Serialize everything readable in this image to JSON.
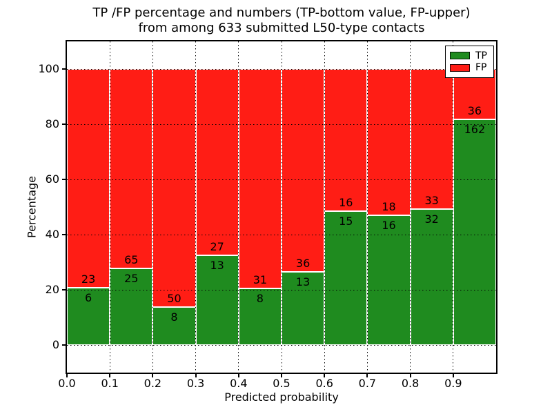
{
  "chart_data": {
    "type": "bar",
    "stacked": true,
    "title_line1": "TP /FP percentage and numbers (TP-bottom value, FP-upper)",
    "title_line2": "from among 633 submitted L50-type contacts",
    "total_contacts": 633,
    "xlabel": "Predicted probability",
    "ylabel": "Percentage",
    "xlim": [
      0.0,
      1.0
    ],
    "ylim": [
      -10,
      110
    ],
    "bar_width": 0.1,
    "grid": true,
    "x_ticks": [
      0.0,
      0.1,
      0.2,
      0.3,
      0.4,
      0.5,
      0.6,
      0.7,
      0.8,
      0.9
    ],
    "x_tick_labels": [
      "0.0",
      "0.1",
      "0.2",
      "0.3",
      "0.4",
      "0.5",
      "0.6",
      "0.7",
      "0.8",
      "0.9"
    ],
    "y_ticks": [
      0,
      20,
      40,
      60,
      80,
      100
    ],
    "y_tick_labels": [
      "0",
      "20",
      "40",
      "60",
      "80",
      "100"
    ],
    "bins": [
      {
        "x0": 0.0,
        "x1": 0.1,
        "tp": 6,
        "fp": 23
      },
      {
        "x0": 0.1,
        "x1": 0.2,
        "tp": 25,
        "fp": 65
      },
      {
        "x0": 0.2,
        "x1": 0.3,
        "tp": 8,
        "fp": 50
      },
      {
        "x0": 0.3,
        "x1": 0.4,
        "tp": 13,
        "fp": 27
      },
      {
        "x0": 0.4,
        "x1": 0.5,
        "tp": 8,
        "fp": 31
      },
      {
        "x0": 0.5,
        "x1": 0.6,
        "tp": 13,
        "fp": 36
      },
      {
        "x0": 0.6,
        "x1": 0.7,
        "tp": 15,
        "fp": 16
      },
      {
        "x0": 0.7,
        "x1": 0.8,
        "tp": 16,
        "fp": 18
      },
      {
        "x0": 0.8,
        "x1": 0.9,
        "tp": 32,
        "fp": 33
      },
      {
        "x0": 0.9,
        "x1": 1.0,
        "tp": 162,
        "fp": 36
      }
    ],
    "legend": [
      {
        "label": "TP",
        "color": "#1f8b1f"
      },
      {
        "label": "FP",
        "color": "#ff1d15"
      }
    ],
    "colors": {
      "tp": "#1f8b1f",
      "fp": "#ff1d15",
      "bar_edge": "#ffffff",
      "frame": "#000000",
      "text": "#000000",
      "background": "#ffffff"
    },
    "legend_position": "upper right"
  }
}
